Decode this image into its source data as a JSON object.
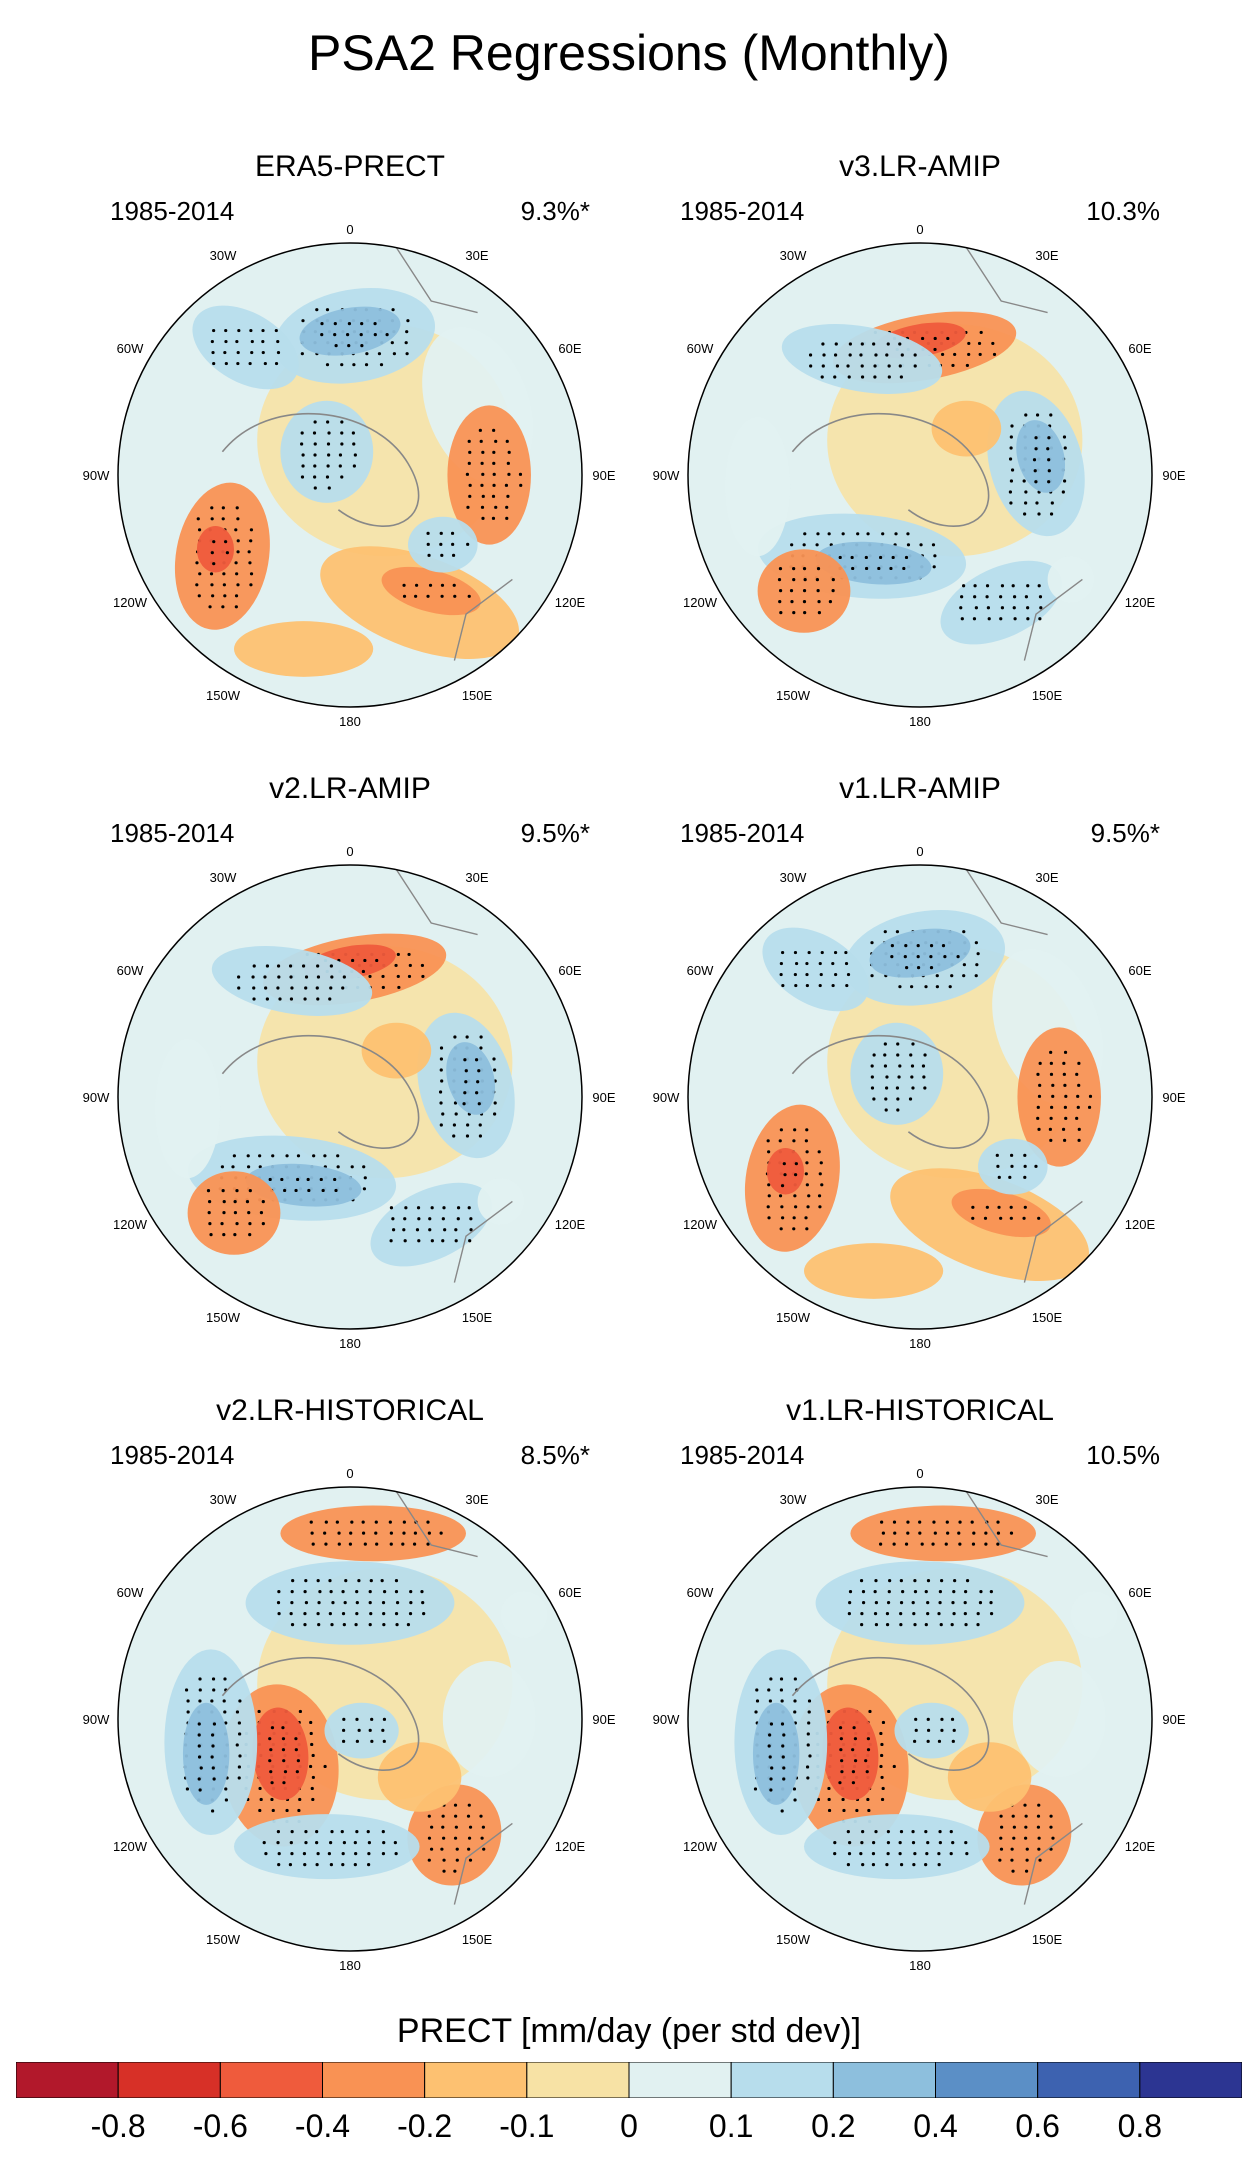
{
  "title": "PSA2 Regressions (Monthly)",
  "longitude_labels": [
    "0",
    "30E",
    "60E",
    "90E",
    "120E",
    "150E",
    "180",
    "150W",
    "120W",
    "90W",
    "60W",
    "30W"
  ],
  "panels": [
    {
      "name": "ERA5-PRECT",
      "period": "1985-2014",
      "variance": "9.3%*"
    },
    {
      "name": "v3.LR-AMIP",
      "period": "1985-2014",
      "variance": "10.3%"
    },
    {
      "name": "v2.LR-AMIP",
      "period": "1985-2014",
      "variance": "9.5%*"
    },
    {
      "name": "v1.LR-AMIP",
      "period": "1985-2014",
      "variance": "9.5%*"
    },
    {
      "name": "v2.LR-HISTORICAL",
      "period": "1985-2014",
      "variance": "8.5%*"
    },
    {
      "name": "v1.LR-HISTORICAL",
      "period": "1985-2014",
      "variance": "10.5%"
    }
  ],
  "colorbar": {
    "title": "PRECT [mm/day (per std dev)]",
    "tick_labels": [
      "-0.8",
      "-0.6",
      "-0.4",
      "-0.2",
      "-0.1",
      "0",
      "0.1",
      "0.2",
      "0.4",
      "0.6",
      "0.8"
    ],
    "colors": [
      "#b2182b",
      "#d73027",
      "#ef5b3c",
      "#f99254",
      "#fdc171",
      "#f7e2a5",
      "#e1f1f1",
      "#b7ddec",
      "#8dbfdd",
      "#5b8fc6",
      "#3d62b0",
      "#2c3592"
    ]
  }
}
